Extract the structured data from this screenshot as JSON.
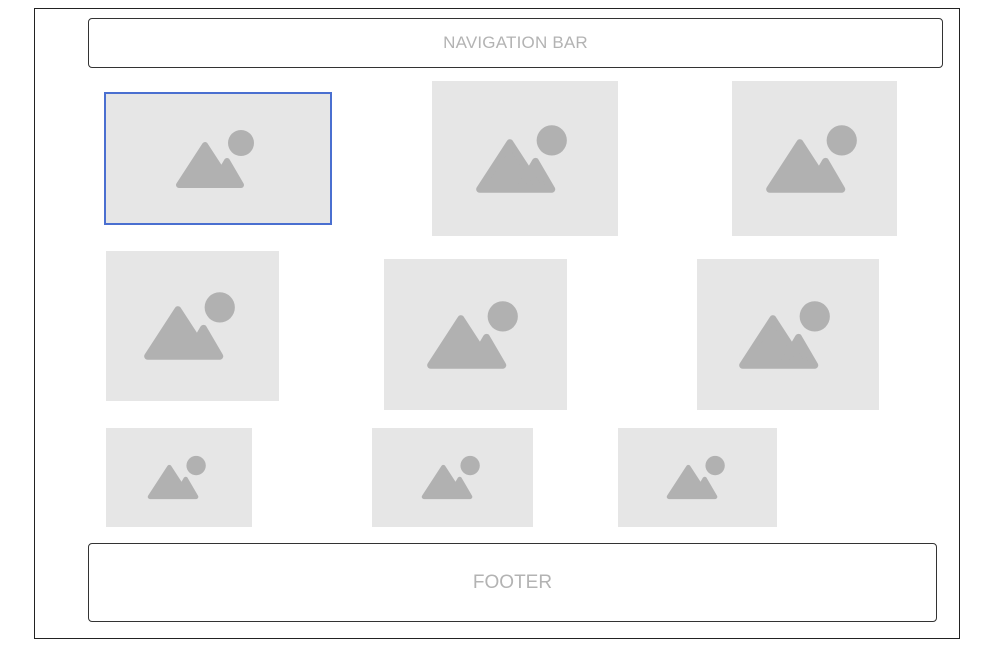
{
  "navbar": {
    "label": "NAVIGATION BAR"
  },
  "footer": {
    "label": "FOOTER"
  },
  "gallery": {
    "placeholder_icon": "image-placeholder-icon",
    "selected_index": 0,
    "count": 9
  },
  "colors": {
    "placeholder_bg": "#e6e6e6",
    "placeholder_icon": "#b1b1b1",
    "selection_border": "#4a6fd0",
    "label_text": "#b3b3b3"
  }
}
